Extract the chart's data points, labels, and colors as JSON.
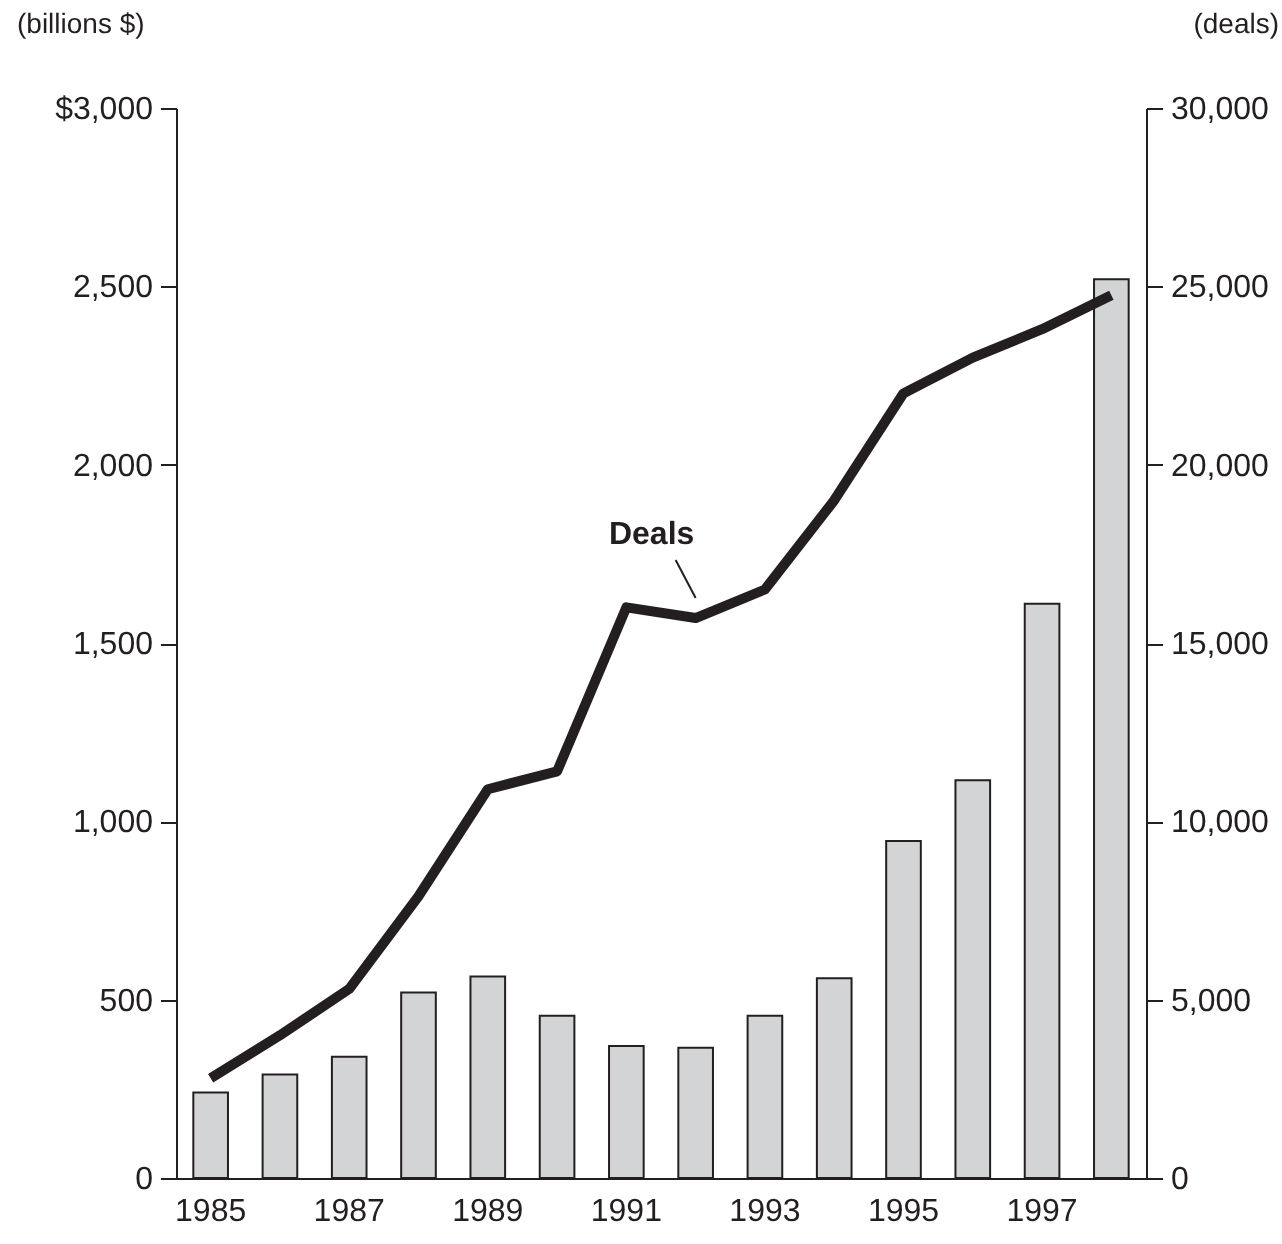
{
  "chart_data": {
    "type": "bar",
    "ylabel": "(billions $)",
    "y2label": "(deals)",
    "categories": [
      "1985",
      null,
      "1987",
      null,
      "1989",
      null,
      "1991",
      null,
      "1993",
      null,
      "1995",
      null,
      "1997",
      null
    ],
    "series": [
      {
        "axis": "y",
        "color": "#d3d4d5",
        "values": [
          240,
          290,
          340,
          520,
          565,
          455,
          370,
          365,
          455,
          560,
          945,
          1115,
          1610,
          2520
        ]
      },
      {
        "type": "line",
        "axis": "y2",
        "name": "Deals",
        "color": "#231f20",
        "values": [
          2800,
          4000,
          5300,
          7900,
          10900,
          11400,
          16000,
          15700,
          16500,
          19000,
          22000,
          23000,
          23800,
          24750
        ]
      }
    ],
    "ylim": [
      0,
      3000
    ],
    "yticks": [
      0,
      {
        "value": 500,
        "label": "500"
      },
      {
        "value": 1000,
        "label": "1,000"
      },
      {
        "value": 1500,
        "label": "1,500"
      },
      {
        "value": 2000,
        "label": "2,000"
      },
      {
        "value": 2500,
        "label": "2,500"
      },
      {
        "value": 3000,
        "label": "$3,000"
      }
    ],
    "y2lim": [
      0,
      30000
    ],
    "y2ticks": [
      0,
      {
        "value": 5000,
        "label": "5,000"
      },
      {
        "value": 10000,
        "label": "10,000"
      },
      {
        "value": 15000,
        "label": "15,000"
      },
      {
        "value": 20000,
        "label": "20,000"
      },
      {
        "value": 25000,
        "label": "25,000"
      },
      {
        "value": 30000,
        "label": "30,000"
      }
    ],
    "grid": false,
    "marker": "none",
    "line_style": "solid"
  }
}
